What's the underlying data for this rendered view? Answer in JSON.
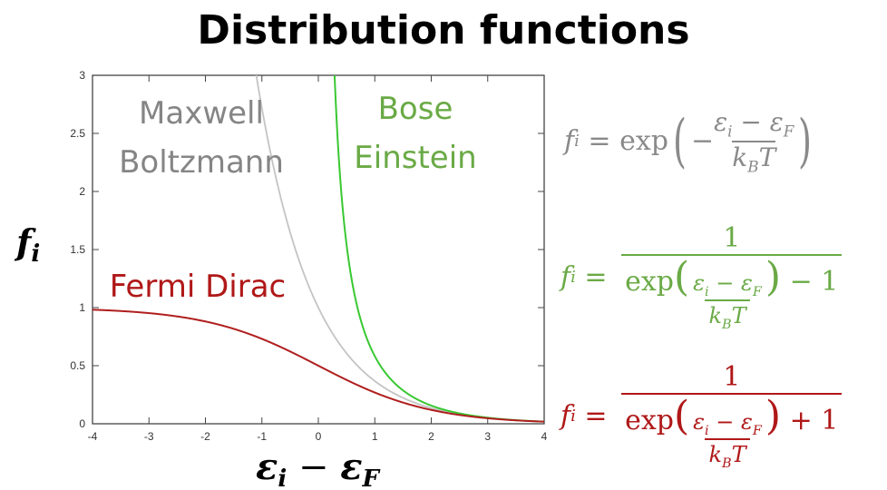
{
  "title": "Distribution functions",
  "chart_data": {
    "type": "line",
    "title": "Distribution functions",
    "xlabel": "εi − εF",
    "ylabel": "fi",
    "xlim": [
      -4,
      4
    ],
    "ylim": [
      0,
      3
    ],
    "xticks": [
      "-4",
      "-3",
      "-2",
      "-1",
      "0",
      "1",
      "2",
      "3",
      "4"
    ],
    "yticks": [
      "0",
      "0.5",
      "1",
      "1.5",
      "2",
      "2.5",
      "3"
    ],
    "grid": false,
    "series": [
      {
        "name": "Maxwell Boltzmann",
        "label_lines": [
          "Maxwell",
          "Boltzmann"
        ],
        "function": "exp(-x)",
        "color": "#c4c4c4",
        "label_color": "#858585"
      },
      {
        "name": "Bose Einstein",
        "label_lines": [
          "Bose",
          "Einstein"
        ],
        "function": "1/(exp(x)-1)",
        "color": "#39c832",
        "label_color": "#6aaa46"
      },
      {
        "name": "Fermi Dirac",
        "label_lines": [
          "Fermi Dirac"
        ],
        "function": "1/(exp(x)+1)",
        "color": "#b01e1e",
        "label_color": "#b01818"
      }
    ]
  },
  "equations": {
    "mb": {
      "lhs": "f",
      "lhs_sub": "i",
      "eq": "=",
      "exp": "exp",
      "minus": "−",
      "num": "ε",
      "num_sub1": "i",
      "num_mid": " − ε",
      "num_sub2": "F",
      "den": "k",
      "den_sub": "B",
      "den_tail": "T",
      "color": "#8a8a8a"
    },
    "be": {
      "lhs": "f",
      "lhs_sub": "i",
      "eq": "=",
      "one": "1",
      "exp": "exp",
      "num": "ε",
      "num_sub1": "i",
      "num_mid": " − ε",
      "num_sub2": "F",
      "den": "k",
      "den_sub": "B",
      "den_tail": "T",
      "tail": " − 1",
      "color": "#6aaa46"
    },
    "fd": {
      "lhs": "f",
      "lhs_sub": "i",
      "eq": "=",
      "one": "1",
      "exp": "exp",
      "num": "ε",
      "num_sub1": "i",
      "num_mid": " − ε",
      "num_sub2": "F",
      "den": "k",
      "den_sub": "B",
      "den_tail": "T",
      "tail": " + 1",
      "color": "#b01818"
    }
  }
}
